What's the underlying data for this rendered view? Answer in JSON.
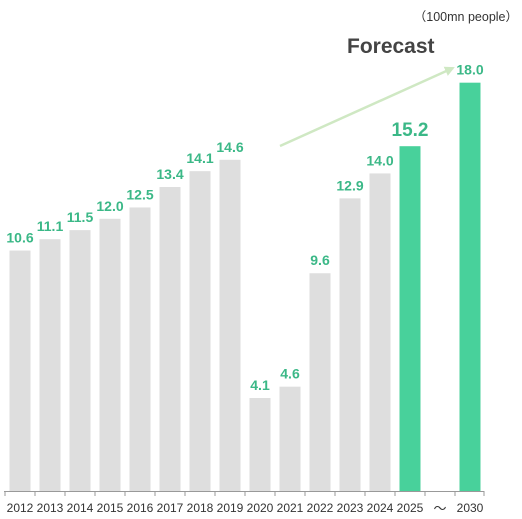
{
  "chart_data": {
    "type": "bar",
    "unit_label": "（100mn people）",
    "annotation": "Forecast",
    "categories": [
      "2012",
      "2013",
      "2014",
      "2015",
      "2016",
      "2017",
      "2018",
      "2019",
      "2020",
      "2021",
      "2022",
      "2023",
      "2024",
      "2025",
      "2030"
    ],
    "values": [
      10.6,
      11.1,
      11.5,
      12.0,
      12.5,
      13.4,
      14.1,
      14.6,
      4.1,
      4.6,
      9.6,
      12.9,
      14.0,
      15.2,
      18.0
    ],
    "value_labels": [
      "10.6",
      "11.1",
      "11.5",
      "12.0",
      "12.5",
      "13.4",
      "14.1",
      "14.6",
      "4.1",
      "4.6",
      "9.6",
      "12.9",
      "14.0",
      "15.2",
      "18.0"
    ],
    "forecast": [
      false,
      false,
      false,
      false,
      false,
      false,
      false,
      false,
      false,
      false,
      false,
      false,
      false,
      true,
      true
    ],
    "axis_break_symbol": "～",
    "ylim": [
      0,
      19.0
    ],
    "colors": {
      "actual": "#dedede",
      "forecast": "#48d19b",
      "label": "#3bb887",
      "axis": "#999999",
      "arrow": "#cfe8c3",
      "tick_text": "#333333"
    }
  }
}
